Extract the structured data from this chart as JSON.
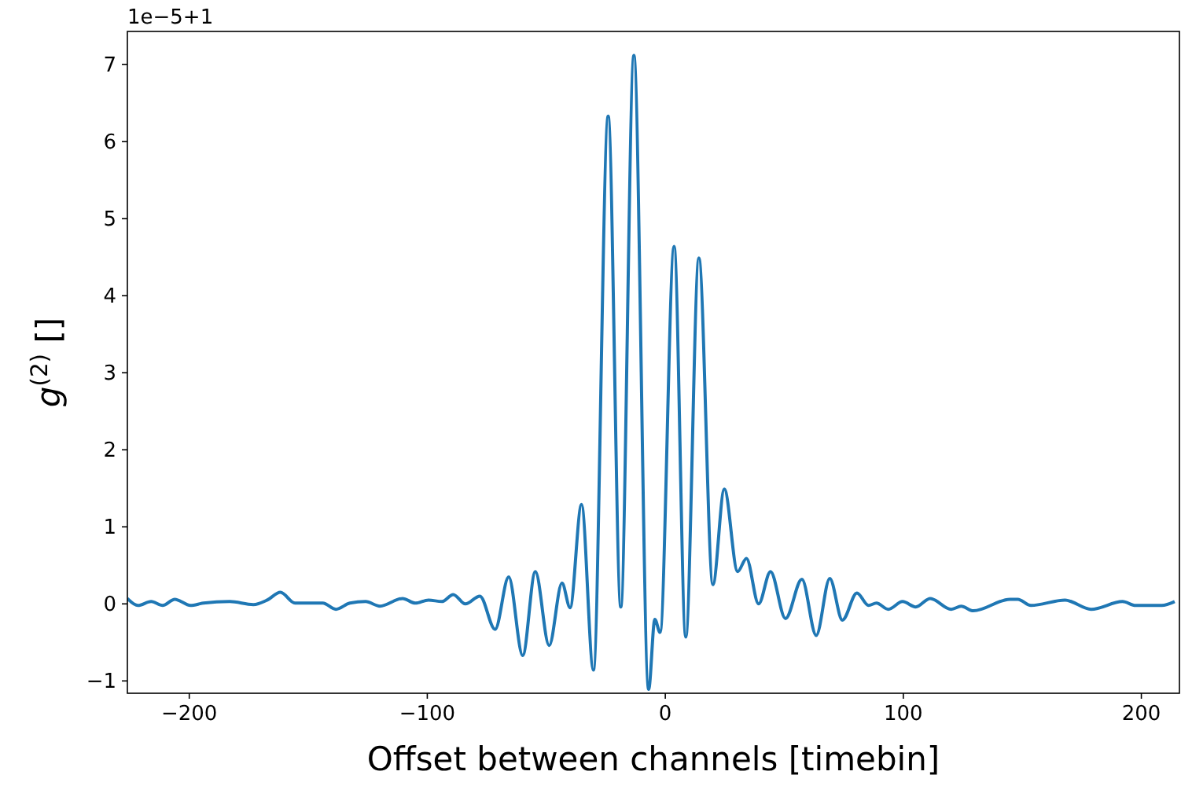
{
  "chart_data": {
    "type": "line",
    "xlabel": "Offset between channels [timebin]",
    "ylabel": "g$^{(2)}$ []",
    "annotations": [
      "1e−5+1"
    ],
    "xlim": [
      -226,
      216
    ],
    "ylim": [
      -1.16,
      7.43
    ],
    "xticks": [
      -200,
      -100,
      0,
      100,
      200
    ],
    "yticks": [
      -1,
      0,
      1,
      2,
      3,
      4,
      5,
      6,
      7
    ],
    "grid": false,
    "marker": "none",
    "line_style": "solid",
    "series": [
      {
        "color": "#1f77b4",
        "x": [
          -226,
          -221.6,
          -216,
          -211.2,
          -206.1,
          -199.5,
          -194,
          -183,
          -173.1,
          -167.2,
          -161.7,
          -155.6,
          -143.9,
          -138.4,
          -132.5,
          -125.9,
          -119.9,
          -110.4,
          -105,
          -99.5,
          -93.9,
          -89.1,
          -84,
          -77.9,
          -71.5,
          -65.8,
          -59.9,
          -54.6,
          -48.8,
          -43.4,
          -40,
          -35.2,
          -30.2,
          -24,
          -18.7,
          -13.2,
          -7,
          -4.4,
          -2.2,
          3.7,
          8.6,
          14.1,
          20,
          24.8,
          30.4,
          34.1,
          39.2,
          44.2,
          50.5,
          57.4,
          63.4,
          69.1,
          74.4,
          80.5,
          85.4,
          88.7,
          93.7,
          99.7,
          105.2,
          111.3,
          120.1,
          124.3,
          129.4,
          144.8,
          148.1,
          153.6,
          167.9,
          178.9,
          192.1,
          197.6,
          208.6,
          214
        ],
        "values": [
          0.07,
          -0.02,
          0.03,
          -0.02,
          0.06,
          -0.02,
          0.01,
          0.03,
          -0.01,
          0.05,
          0.15,
          0.01,
          0.01,
          -0.07,
          0.01,
          0.03,
          -0.03,
          0.07,
          0.01,
          0.05,
          0.03,
          0.12,
          0,
          0.1,
          -0.33,
          0.35,
          -0.67,
          0.42,
          -0.54,
          0.27,
          -0.05,
          1.29,
          -0.86,
          6.33,
          -0.04,
          7.12,
          -1.11,
          -0.2,
          -0.37,
          4.64,
          -0.43,
          4.49,
          0.25,
          1.49,
          0.42,
          0.59,
          0,
          0.42,
          -0.19,
          0.32,
          -0.41,
          0.33,
          -0.21,
          0.14,
          -0.02,
          0.01,
          -0.07,
          0.03,
          -0.04,
          0.07,
          -0.07,
          -0.03,
          -0.09,
          0.06,
          0.06,
          -0.02,
          0.05,
          -0.07,
          0.03,
          -0.02,
          -0.02,
          0.03
        ]
      }
    ]
  }
}
